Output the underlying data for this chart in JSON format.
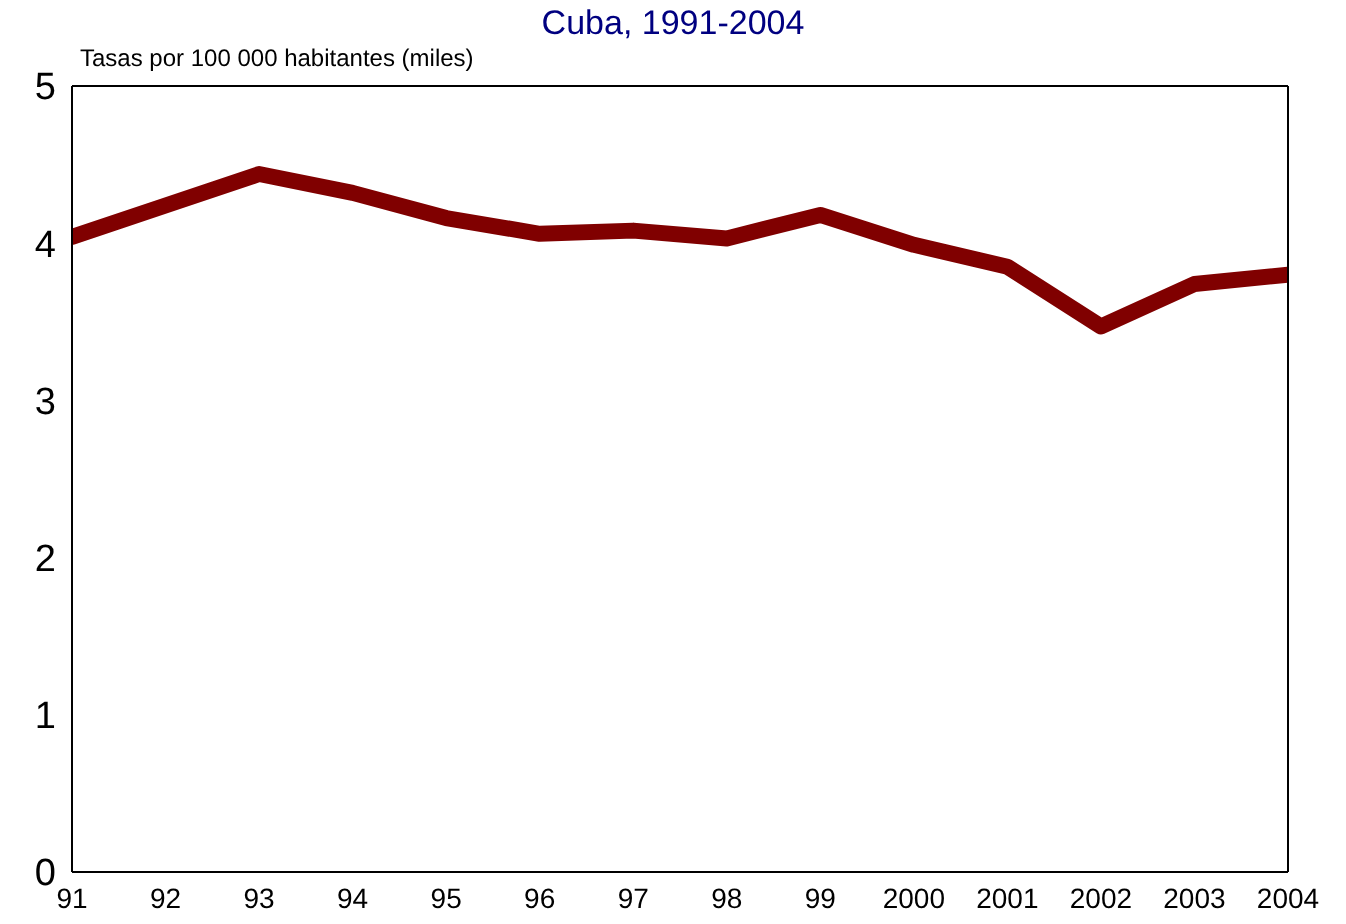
{
  "chart_data": {
    "type": "line",
    "title": "Cuba, 1991-2004",
    "ylabel": "Tasas por 100 000 habitantes (miles)",
    "categories": [
      "91",
      "92",
      "93",
      "94",
      "95",
      "96",
      "97",
      "98",
      "99",
      "2000",
      "2001",
      "2002",
      "2003",
      "2004"
    ],
    "series": [
      {
        "color": "#800000",
        "values": [
          4.04,
          4.24,
          4.44,
          4.32,
          4.16,
          4.06,
          4.08,
          4.03,
          4.18,
          3.99,
          3.85,
          3.47,
          3.74,
          3.8
        ]
      }
    ],
    "ylim": [
      0,
      5
    ],
    "yticks": [
      0,
      1,
      2,
      3,
      4,
      5
    ],
    "grid": false,
    "legend": false,
    "marker": "none",
    "line_style": "solid"
  }
}
